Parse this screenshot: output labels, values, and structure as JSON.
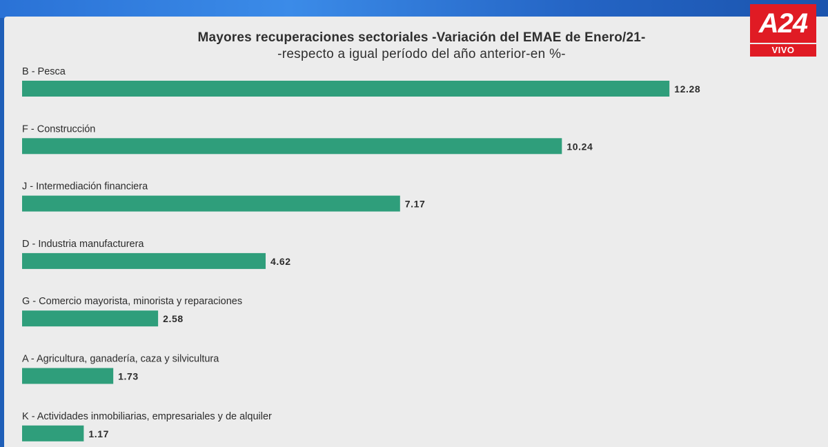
{
  "broadcast": {
    "logo_text": "A24",
    "live_label": "VIVO",
    "logo_color": "#e01b24"
  },
  "chart_data": {
    "type": "bar",
    "orientation": "horizontal",
    "title": "Mayores recuperaciones sectoriales -Variación del EMAE de Enero/21-",
    "subtitle": "-respecto a igual período del año anterior-en %-",
    "categories": [
      "B - Pesca",
      "F - Construcción",
      "J - Intermediación financiera",
      "D - Industria manufacturera",
      "G - Comercio mayorista, minorista y reparaciones",
      "A -  Agricultura, ganadería, caza y silvicultura",
      "K - Actividades inmobiliarias, empresariales y de alquiler"
    ],
    "values": [
      12.28,
      10.24,
      7.17,
      4.62,
      2.58,
      1.73,
      1.17
    ],
    "value_labels": [
      "12.28",
      "10.24",
      "7.17",
      "4.62",
      "2.58",
      "1.73",
      "1.17"
    ],
    "bar_color": "#2f9e7b",
    "grid": false,
    "axes_visible": false
  }
}
